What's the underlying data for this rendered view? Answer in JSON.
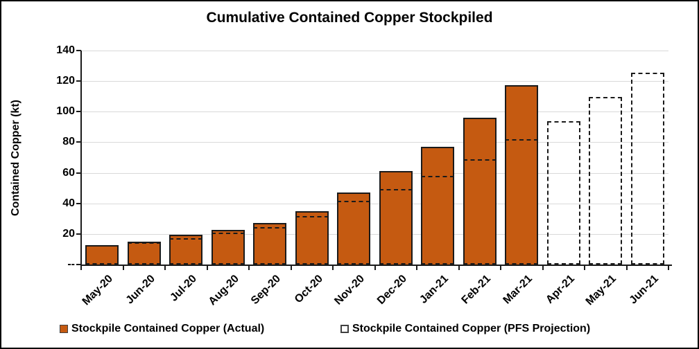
{
  "chart_data": {
    "type": "bar",
    "title": "Cumulative Contained Copper Stockpiled",
    "xlabel": "",
    "ylabel": "Contained Copper (kt)",
    "categories": [
      "May-20",
      "Jun-20",
      "Jul-20",
      "Aug-20",
      "Sep-20",
      "Oct-20",
      "Nov-20",
      "Dec-20",
      "Jan-21",
      "Feb-21",
      "Mar-21",
      "Apr-21",
      "May-21",
      "Jun-21"
    ],
    "series": [
      {
        "name": "Stockpile Contained Copper (Actual)",
        "style": "filled",
        "color": "#C55A11",
        "values": [
          12.5,
          15,
          19.5,
          22.5,
          27,
          35,
          47,
          61,
          77,
          96,
          117.5,
          null,
          null,
          null
        ]
      },
      {
        "name": "Stockpile Contained Copper (PFS Projection)",
        "style": "dashed-outline",
        "color": "#1a1a1a",
        "values": [
          12.5,
          14.5,
          17,
          21,
          24.5,
          31.5,
          41.5,
          49.5,
          58,
          69,
          82,
          94,
          109.5,
          125.5
        ]
      }
    ],
    "ylim": [
      0,
      140
    ],
    "ytick_step": 20,
    "yticks": [
      {
        "label": "140",
        "value": 140
      },
      {
        "label": "120",
        "value": 120
      },
      {
        "label": "100",
        "value": 100
      },
      {
        "label": "80",
        "value": 80
      },
      {
        "label": "60",
        "value": 60
      },
      {
        "label": "40",
        "value": 40
      },
      {
        "label": "20",
        "value": 20
      },
      {
        "label": "--",
        "value": 0
      }
    ],
    "grid": true,
    "gridline_color": "#d9d9d9",
    "legend_position": "bottom"
  },
  "legend": {
    "items": [
      {
        "label": "Stockpile Contained Copper (Actual)",
        "swatch": "filled-orange-square"
      },
      {
        "label": "Stockpile Contained Copper (PFS Projection)",
        "swatch": "dashed-outline-square"
      }
    ]
  }
}
